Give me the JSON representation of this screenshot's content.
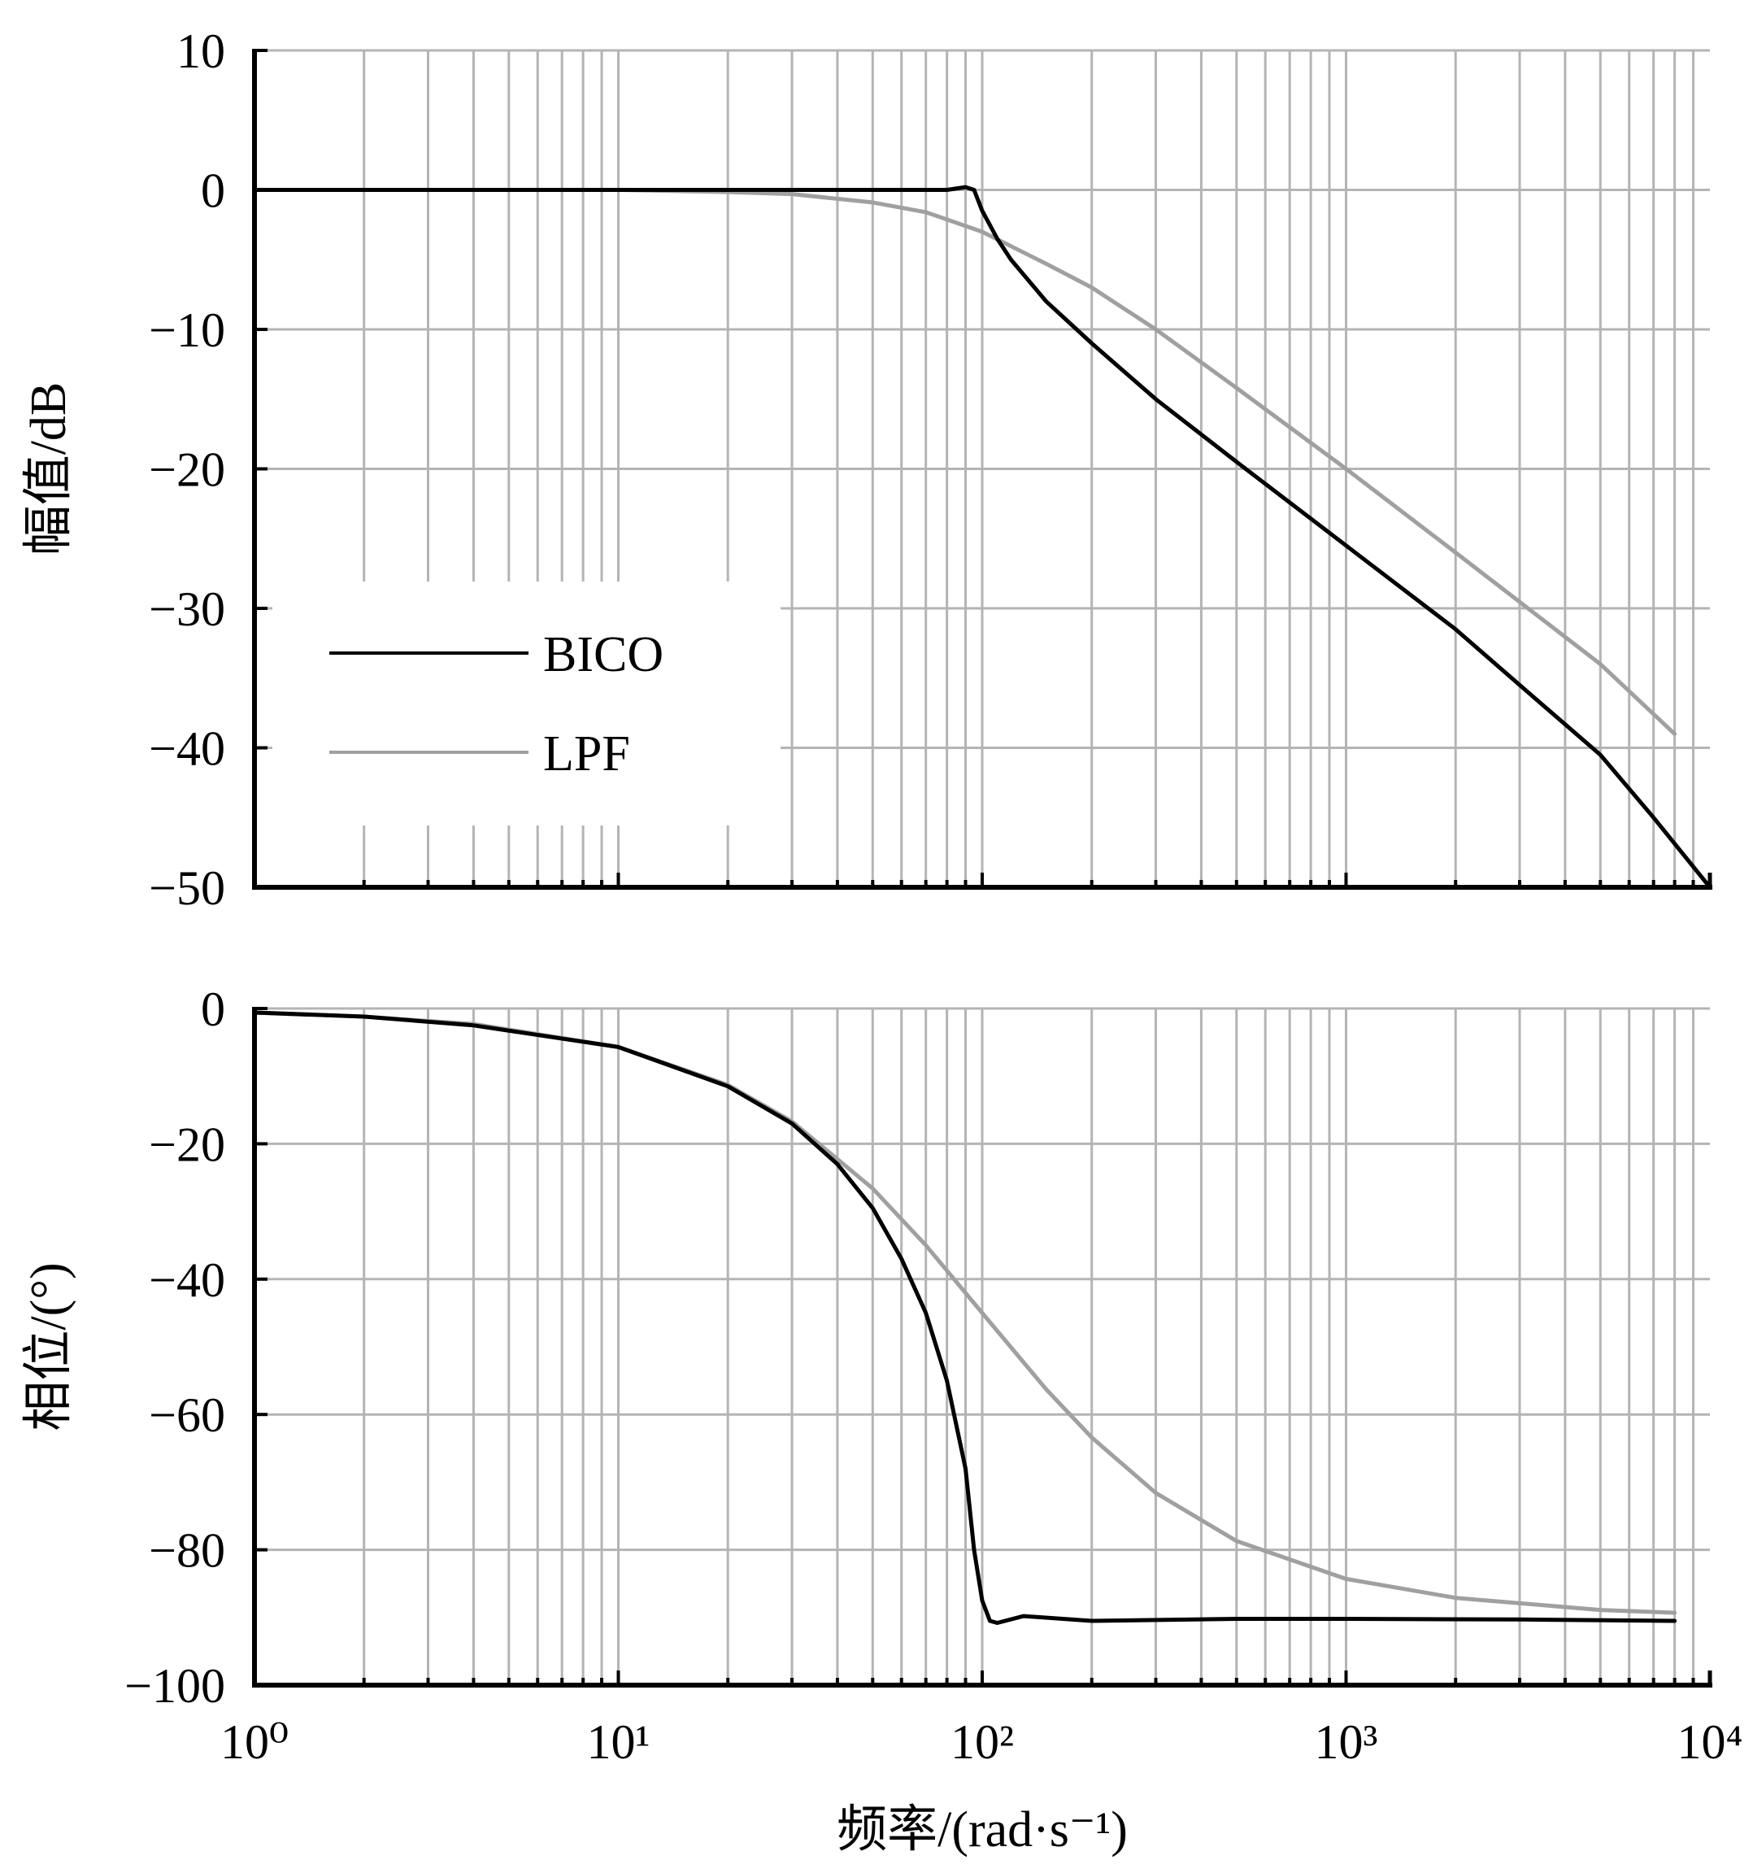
{
  "chart_data": [
    {
      "type": "line",
      "title": "",
      "xlabel": "",
      "ylabel": "幅值/dB",
      "x_scale": "log",
      "xlim": [
        1,
        10000
      ],
      "ylim": [
        -50,
        10
      ],
      "yticks": [
        "10",
        "0",
        "−10",
        "−20",
        "−30",
        "−40",
        "−50"
      ],
      "ytick_values": [
        10,
        0,
        -10,
        -20,
        -30,
        -40,
        -50
      ],
      "grid": true,
      "legend": "left",
      "series": [
        {
          "name": "BICO",
          "color": "#000000",
          "x": [
            1,
            10,
            50,
            70,
            80,
            90,
            95,
            100,
            110,
            120,
            150,
            200,
            300,
            500,
            1000,
            2000,
            3000,
            5000,
            7000,
            10000
          ],
          "y": [
            0,
            0,
            0,
            0,
            0,
            0.2,
            0,
            -1.5,
            -3.5,
            -5,
            -8,
            -11,
            -15,
            -19.5,
            -25.5,
            -31.5,
            -35.5,
            -40.5,
            -45,
            -50
          ]
        },
        {
          "name": "LPF",
          "color": "#a0a0a0",
          "x": [
            1,
            10,
            20,
            30,
            50,
            70,
            100,
            150,
            200,
            300,
            500,
            1000,
            2000,
            5000,
            8000
          ],
          "y": [
            0,
            0,
            -0.15,
            -0.3,
            -0.9,
            -1.6,
            -3,
            -5.3,
            -7,
            -10,
            -14.2,
            -20,
            -26,
            -34,
            -39
          ]
        }
      ]
    },
    {
      "type": "line",
      "title": "",
      "xlabel": "频率/(rad·s⁻¹)",
      "ylabel": "相位/(°)",
      "x_scale": "log",
      "xlim": [
        1,
        10000
      ],
      "ylim": [
        -100,
        0
      ],
      "yticks": [
        "0",
        "−20",
        "−40",
        "−60",
        "−80",
        "−100"
      ],
      "ytick_values": [
        0,
        -20,
        -40,
        -60,
        -80,
        -100
      ],
      "xticks": [
        "10⁰",
        "10¹",
        "10²",
        "10³",
        "10⁴"
      ],
      "xtick_values": [
        1,
        10,
        100,
        1000,
        10000
      ],
      "grid": true,
      "series": [
        {
          "name": "BICO",
          "color": "#000000",
          "x": [
            1,
            2,
            4,
            10,
            20,
            30,
            40,
            50,
            60,
            70,
            80,
            90,
            95,
            100,
            105,
            110,
            130,
            200,
            500,
            1000,
            3000,
            8000
          ],
          "y": [
            -0.6,
            -1.2,
            -2.5,
            -5.7,
            -11.5,
            -17,
            -23,
            -29.5,
            -37,
            -45,
            -55,
            -68,
            -80,
            -87.5,
            -90.5,
            -90.8,
            -89.8,
            -90.5,
            -90.2,
            -90.2,
            -90.3,
            -90.5
          ]
        },
        {
          "name": "LPF",
          "color": "#a0a0a0",
          "x": [
            1,
            2,
            4,
            10,
            20,
            30,
            50,
            70,
            100,
            150,
            200,
            300,
            500,
            1000,
            2000,
            5000,
            8000
          ],
          "y": [
            -0.6,
            -1.2,
            -2.3,
            -5.7,
            -11.3,
            -16.7,
            -26.6,
            -35,
            -45,
            -56.3,
            -63.4,
            -71.6,
            -78.7,
            -84.3,
            -87.1,
            -88.9,
            -89.3
          ]
        }
      ]
    }
  ]
}
